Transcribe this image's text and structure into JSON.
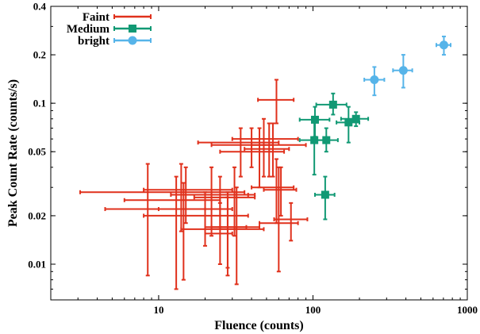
{
  "chart_data": {
    "type": "scatter",
    "title": "",
    "xlabel": "Fluence (counts)",
    "ylabel": "Peak Count Rate (counts/s)",
    "x_scale": "log",
    "y_scale": "log",
    "xlim": [
      2,
      1000
    ],
    "ylim": [
      0.006,
      0.4
    ],
    "x_ticks": [
      10,
      100,
      1000
    ],
    "x_tick_labels": [
      "10",
      "100",
      "1000"
    ],
    "y_ticks": [
      0.01,
      0.02,
      0.05,
      0.1,
      0.2,
      0.4
    ],
    "y_tick_labels": [
      "0.01",
      "0.02",
      "0.05",
      "0.1",
      "0.2",
      "0.4"
    ],
    "grid": false,
    "legend_position": "top-left",
    "series": [
      {
        "name": "Faint",
        "color": "#e0311c",
        "marker": "plus",
        "points": [
          {
            "x": 58,
            "y": 0.105,
            "xlo": 44,
            "xhi": 75,
            "ylo": 0.075,
            "yhi": 0.14
          },
          {
            "x": 48,
            "y": 0.06,
            "xlo": 30,
            "xhi": 80,
            "ylo": 0.035,
            "yhi": 0.08
          },
          {
            "x": 40,
            "y": 0.057,
            "xlo": 18,
            "xhi": 60,
            "ylo": 0.04,
            "yhi": 0.07
          },
          {
            "x": 52,
            "y": 0.052,
            "xlo": 36,
            "xhi": 70,
            "ylo": 0.035,
            "yhi": 0.075
          },
          {
            "x": 45,
            "y": 0.05,
            "xlo": 25,
            "xhi": 65,
            "ylo": 0.03,
            "yhi": 0.07
          },
          {
            "x": 55,
            "y": 0.055,
            "xlo": 40,
            "xhi": 90,
            "ylo": 0.035,
            "yhi": 0.075
          },
          {
            "x": 34,
            "y": 0.055,
            "xlo": 22,
            "xhi": 55,
            "ylo": 0.035,
            "yhi": 0.07
          },
          {
            "x": 58,
            "y": 0.03,
            "xlo": 40,
            "xhi": 75,
            "ylo": 0.018,
            "yhi": 0.045
          },
          {
            "x": 62,
            "y": 0.029,
            "xlo": 48,
            "xhi": 78,
            "ylo": 0.02,
            "yhi": 0.04
          },
          {
            "x": 60,
            "y": 0.018,
            "xlo": 45,
            "xhi": 80,
            "ylo": 0.009,
            "yhi": 0.04
          },
          {
            "x": 72,
            "y": 0.019,
            "xlo": 56,
            "xhi": 92,
            "ylo": 0.014,
            "yhi": 0.024
          },
          {
            "x": 14,
            "y": 0.028,
            "xlo": 3.1,
            "xhi": 36,
            "ylo": 0.016,
            "yhi": 0.042
          },
          {
            "x": 15,
            "y": 0.029,
            "xlo": 8,
            "xhi": 30,
            "ylo": 0.018,
            "yhi": 0.04
          },
          {
            "x": 13,
            "y": 0.025,
            "xlo": 6,
            "xhi": 25,
            "ylo": 0.007,
            "yhi": 0.035
          },
          {
            "x": 14.5,
            "y": 0.022,
            "xlo": 10,
            "xhi": 20,
            "ylo": 0.008,
            "yhi": 0.032
          },
          {
            "x": 8.5,
            "y": 0.022,
            "xlo": 4.5,
            "xhi": 30,
            "ylo": 0.0085,
            "yhi": 0.042
          },
          {
            "x": 22,
            "y": 0.027,
            "xlo": 12,
            "xhi": 38,
            "ylo": 0.015,
            "yhi": 0.04
          },
          {
            "x": 25,
            "y": 0.026,
            "xlo": 17,
            "xhi": 42,
            "ylo": 0.017,
            "yhi": 0.035
          },
          {
            "x": 20,
            "y": 0.02,
            "xlo": 8,
            "xhi": 38,
            "ylo": 0.013,
            "yhi": 0.028
          },
          {
            "x": 28,
            "y": 0.017,
            "xlo": 20,
            "xhi": 37,
            "ylo": 0.0085,
            "yhi": 0.028
          },
          {
            "x": 32,
            "y": 0.017,
            "xlo": 22,
            "xhi": 45,
            "ylo": 0.0075,
            "yhi": 0.03
          },
          {
            "x": 28,
            "y": 0.0165,
            "xlo": 14,
            "xhi": 48,
            "ylo": 0.0095,
            "yhi": 0.026
          },
          {
            "x": 25,
            "y": 0.0155,
            "xlo": 20,
            "xhi": 30,
            "ylo": 0.01,
            "yhi": 0.024
          },
          {
            "x": 31,
            "y": 0.027,
            "xlo": 22,
            "xhi": 42,
            "ylo": 0.015,
            "yhi": 0.04
          }
        ]
      },
      {
        "name": "Medium",
        "color": "#119974",
        "marker": "square",
        "points": [
          {
            "x": 135,
            "y": 0.098,
            "xlo": 105,
            "xhi": 165,
            "ylo": 0.085,
            "yhi": 0.115
          },
          {
            "x": 103,
            "y": 0.079,
            "xlo": 82,
            "xhi": 128,
            "ylo": 0.062,
            "yhi": 0.095
          },
          {
            "x": 190,
            "y": 0.08,
            "xlo": 152,
            "xhi": 228,
            "ylo": 0.072,
            "yhi": 0.088
          },
          {
            "x": 170,
            "y": 0.076,
            "xlo": 142,
            "xhi": 200,
            "ylo": 0.057,
            "yhi": 0.095
          },
          {
            "x": 102,
            "y": 0.059,
            "xlo": 82,
            "xhi": 120,
            "ylo": 0.036,
            "yhi": 0.076
          },
          {
            "x": 122,
            "y": 0.059,
            "xlo": 100,
            "xhi": 145,
            "ylo": 0.05,
            "yhi": 0.07
          },
          {
            "x": 120,
            "y": 0.027,
            "xlo": 103,
            "xhi": 138,
            "ylo": 0.019,
            "yhi": 0.035
          }
        ]
      },
      {
        "name": "bright",
        "color": "#56b4e9",
        "marker": "circle",
        "points": [
          {
            "x": 250,
            "y": 0.14,
            "xlo": 215,
            "xhi": 290,
            "ylo": 0.112,
            "yhi": 0.168
          },
          {
            "x": 385,
            "y": 0.16,
            "xlo": 330,
            "xhi": 440,
            "ylo": 0.125,
            "yhi": 0.2
          },
          {
            "x": 705,
            "y": 0.23,
            "xlo": 630,
            "xhi": 780,
            "ylo": 0.2,
            "yhi": 0.26
          }
        ]
      }
    ]
  }
}
